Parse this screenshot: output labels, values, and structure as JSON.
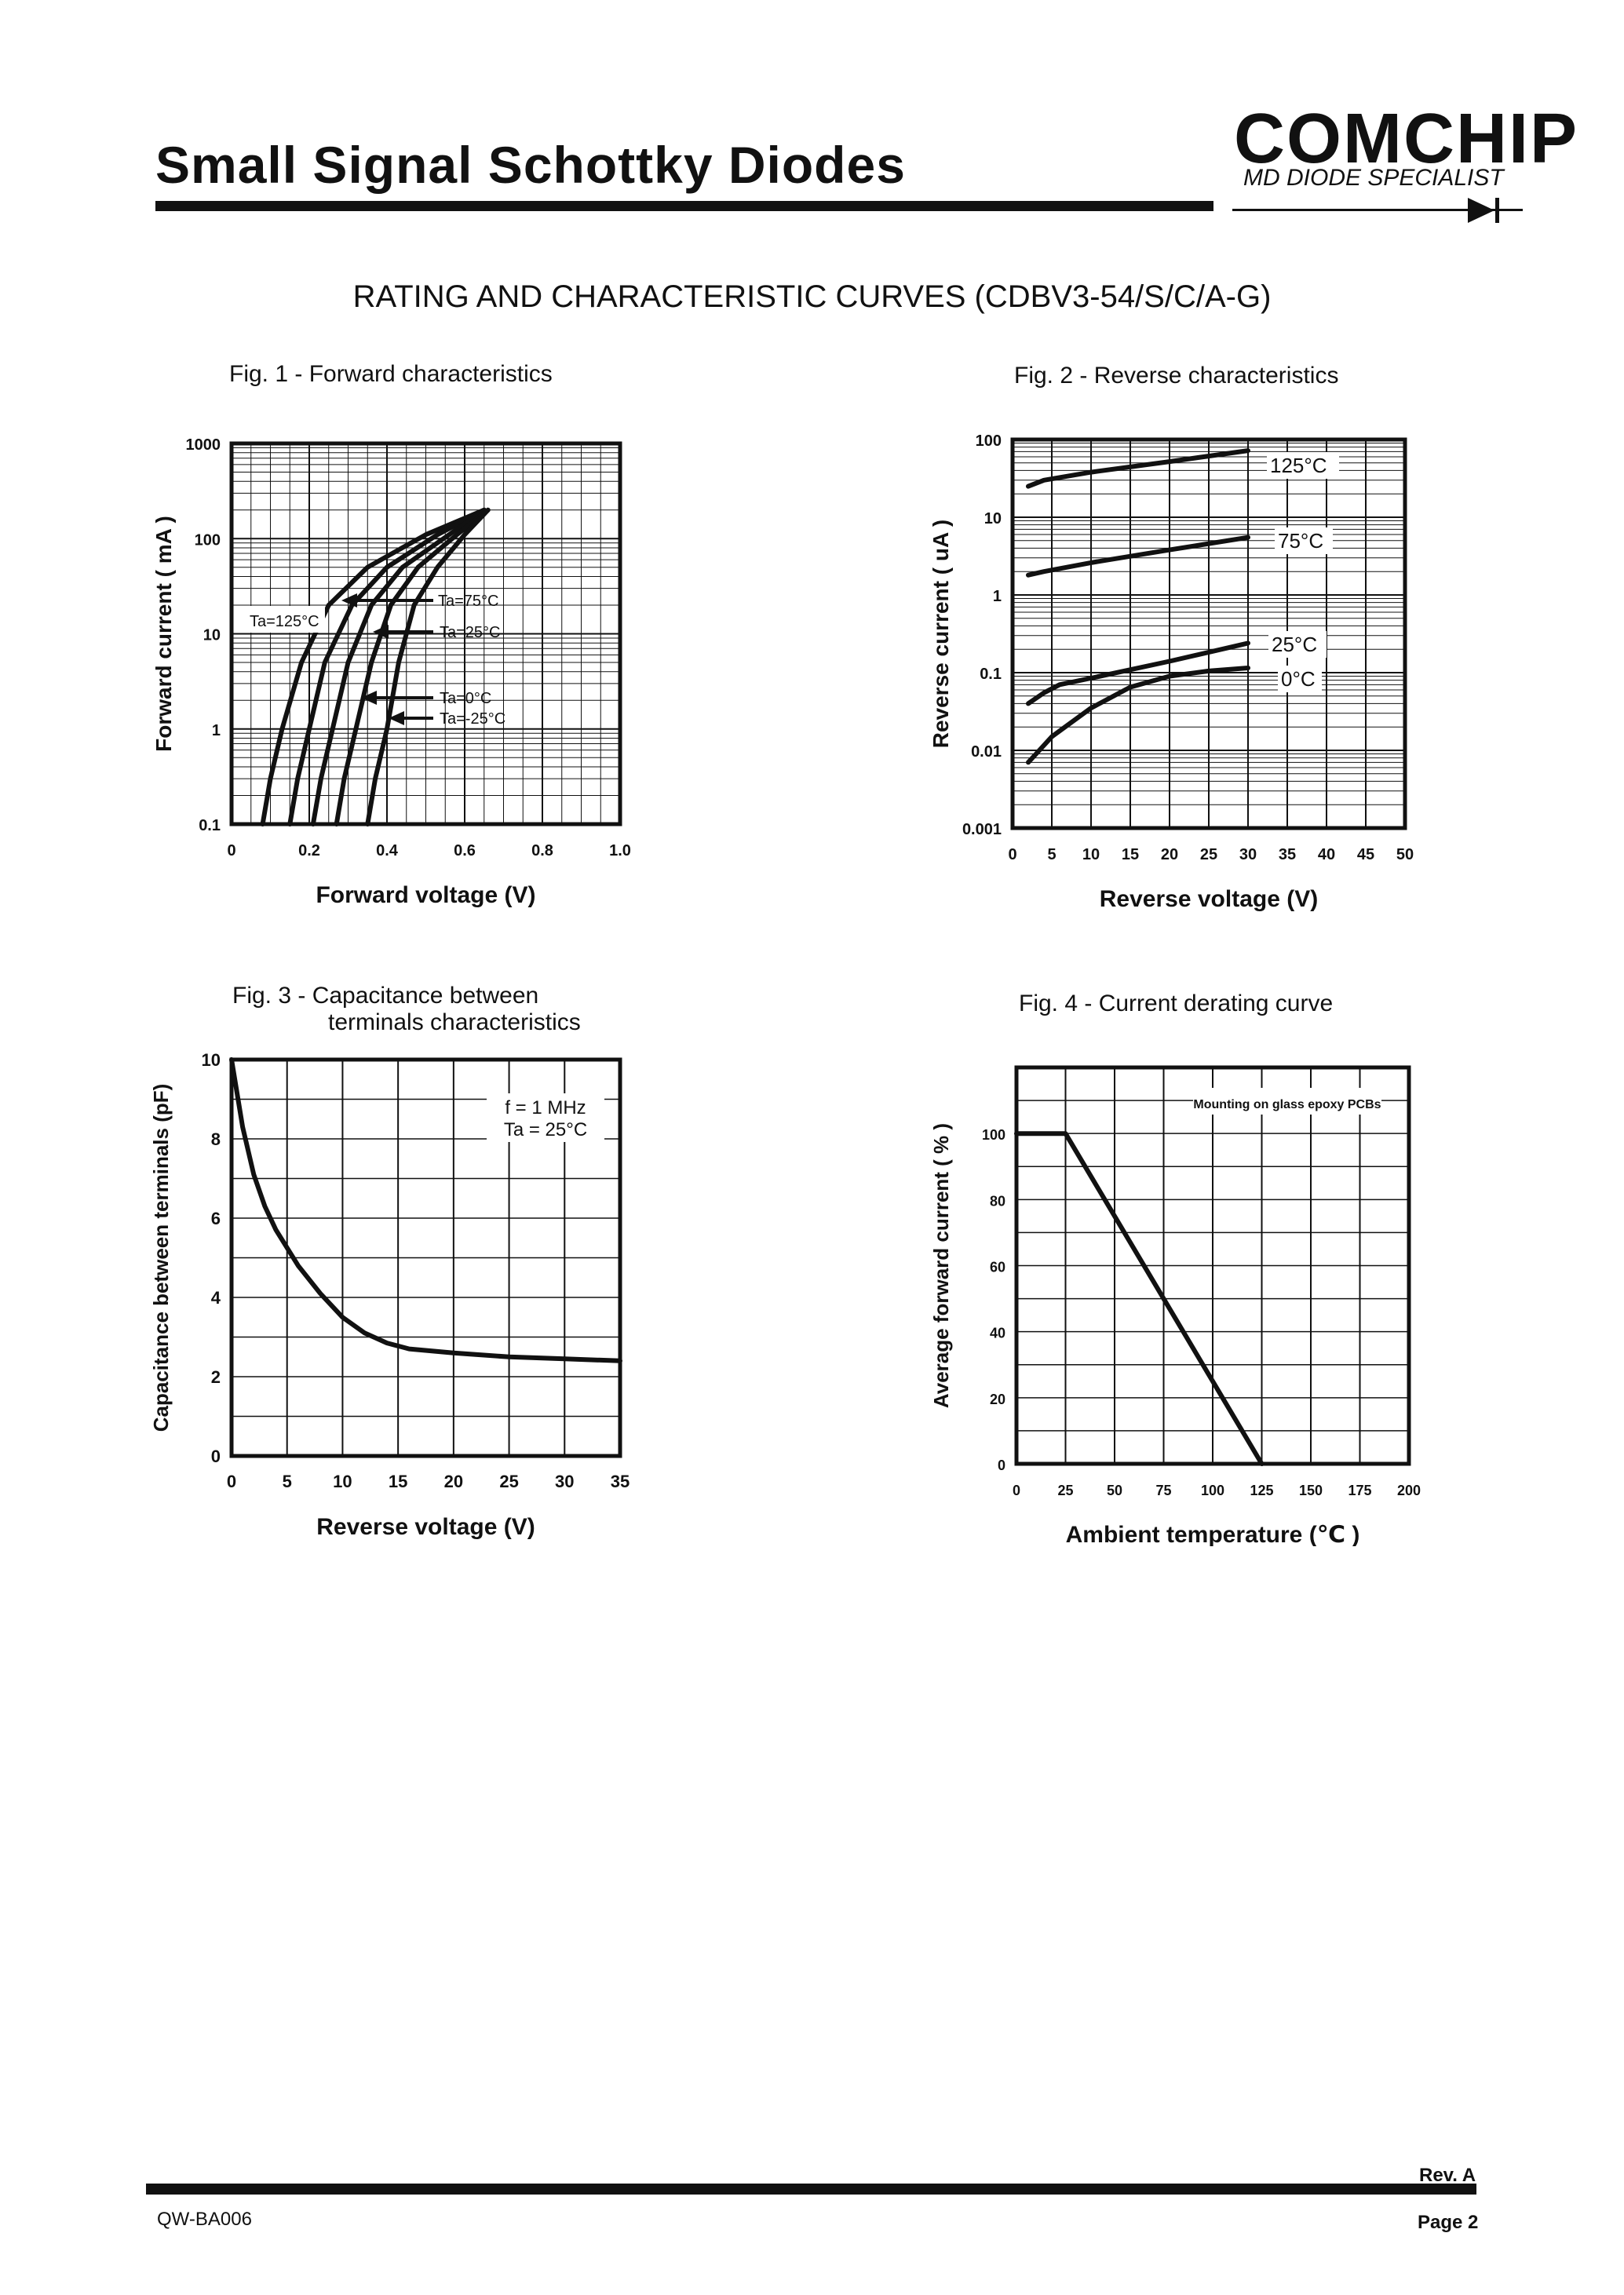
{
  "header": {
    "title": "Small Signal Schottky Diodes",
    "logo_main": "COMCHIP",
    "logo_sub": "MD DIODE SPECIALIST"
  },
  "section_title": "RATING AND CHARACTERISTIC CURVES (CDBV3-54/S/C/A-G)",
  "footer": {
    "rev": "Rev. A",
    "doc": "QW-BA006",
    "page": "Page 2"
  },
  "chart_data": [
    {
      "id": "fig1",
      "type": "line",
      "title": "Fig. 1 -  Forward characteristics",
      "xlabel": "Forward voltage (V)",
      "ylabel": "Forward current ( mA )",
      "yscale": "log",
      "xlim": [
        0,
        1.0
      ],
      "ylim": [
        0.1,
        1000
      ],
      "xticks": [
        "0",
        "0.2",
        "0.4",
        "0.6",
        "0.8",
        "1.0"
      ],
      "yticks": [
        "0.1",
        "1",
        "10",
        "100",
        "1000"
      ],
      "series": [
        {
          "name": "Ta=125°C",
          "x": [
            0.08,
            0.1,
            0.13,
            0.18,
            0.25,
            0.35,
            0.5,
            0.65
          ],
          "y": [
            0.1,
            0.3,
            1,
            5,
            20,
            50,
            110,
            200
          ]
        },
        {
          "name": "Ta=75°C",
          "x": [
            0.15,
            0.17,
            0.2,
            0.24,
            0.31,
            0.4,
            0.53,
            0.65
          ],
          "y": [
            0.1,
            0.3,
            1,
            5,
            20,
            50,
            110,
            200
          ]
        },
        {
          "name": "Ta=25°C",
          "x": [
            0.21,
            0.23,
            0.26,
            0.3,
            0.36,
            0.44,
            0.56,
            0.65
          ],
          "y": [
            0.1,
            0.3,
            1,
            5,
            20,
            50,
            110,
            200
          ]
        },
        {
          "name": "Ta=0°C",
          "x": [
            0.27,
            0.29,
            0.32,
            0.36,
            0.41,
            0.48,
            0.58,
            0.66
          ],
          "y": [
            0.1,
            0.3,
            1,
            5,
            20,
            50,
            110,
            200
          ]
        },
        {
          "name": "Ta=-25°C",
          "x": [
            0.35,
            0.37,
            0.4,
            0.43,
            0.47,
            0.53,
            0.6,
            0.66
          ],
          "y": [
            0.1,
            0.3,
            1,
            5,
            20,
            50,
            110,
            200
          ]
        }
      ]
    },
    {
      "id": "fig2",
      "type": "line",
      "title": "Fig. 2 -  Reverse characteristics",
      "xlabel": "Reverse voltage (V)",
      "ylabel": "Reverse  current ( uA )",
      "yscale": "log",
      "xlim": [
        0,
        50
      ],
      "ylim": [
        0.001,
        100
      ],
      "xticks": [
        "0",
        "5",
        "10",
        "15",
        "20",
        "25",
        "30",
        "35",
        "40",
        "45",
        "50"
      ],
      "yticks": [
        "0.001",
        "0.01",
        "0.1",
        "1",
        "10",
        "100"
      ],
      "series": [
        {
          "name": "125°C",
          "x": [
            2,
            4,
            10,
            20,
            30
          ],
          "y": [
            25,
            30,
            38,
            52,
            72
          ]
        },
        {
          "name": "75°C",
          "x": [
            2,
            4,
            10,
            20,
            30
          ],
          "y": [
            1.8,
            2.0,
            2.6,
            3.8,
            5.5
          ]
        },
        {
          "name": "25°C",
          "x": [
            2,
            4,
            6,
            10,
            20,
            30
          ],
          "y": [
            0.04,
            0.055,
            0.07,
            0.085,
            0.14,
            0.24
          ]
        },
        {
          "name": "0°C",
          "x": [
            2,
            3,
            5,
            10,
            15,
            20,
            25,
            30
          ],
          "y": [
            0.007,
            0.009,
            0.015,
            0.035,
            0.065,
            0.09,
            0.105,
            0.115
          ]
        }
      ]
    },
    {
      "id": "fig3",
      "type": "line",
      "title": "Fig. 3 -  Capacitance between",
      "title2": "terminals characteristics",
      "xlabel": "Reverse voltage (V)",
      "ylabel": "Capacitance between terminals (pF)",
      "annotation1": "f = 1 MHz",
      "annotation2": "Ta = 25°C",
      "xlim": [
        0,
        35
      ],
      "ylim": [
        0,
        10
      ],
      "xticks": [
        "0",
        "5",
        "10",
        "15",
        "20",
        "25",
        "30",
        "35"
      ],
      "yticks": [
        "0",
        "2",
        "4",
        "6",
        "8",
        "10"
      ],
      "series": [
        {
          "name": "Capacitance",
          "x": [
            0,
            1,
            2,
            3,
            4,
            6,
            8,
            10,
            12,
            14,
            16,
            20,
            25,
            30,
            35
          ],
          "y": [
            10,
            8.3,
            7.1,
            6.3,
            5.7,
            4.8,
            4.1,
            3.5,
            3.1,
            2.85,
            2.7,
            2.6,
            2.5,
            2.45,
            2.4
          ]
        }
      ]
    },
    {
      "id": "fig4",
      "type": "line",
      "title": "Fig. 4 - Current derating curve",
      "xlabel": "Ambient temperature (℃ )",
      "ylabel": "Average forward current ( % )",
      "annotation1": "Mounting on glass epoxy PCBs",
      "xlim": [
        0,
        200
      ],
      "ylim": [
        0,
        120
      ],
      "xticks": [
        "0",
        "25",
        "50",
        "75",
        "100",
        "125",
        "150",
        "175",
        "200"
      ],
      "yticks": [
        "0",
        "20",
        "40",
        "60",
        "80",
        "100"
      ],
      "series": [
        {
          "name": "Derating",
          "x": [
            0,
            25,
            125
          ],
          "y": [
            100,
            100,
            0
          ]
        }
      ]
    }
  ]
}
